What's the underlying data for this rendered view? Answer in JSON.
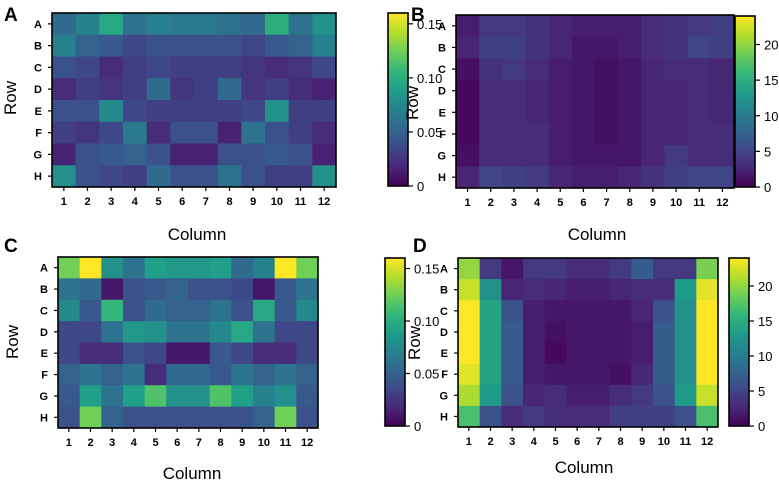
{
  "figure": {
    "panel_letters": [
      "A",
      "B",
      "C",
      "D"
    ]
  },
  "colors": {
    "viridis": [
      "#440154",
      "#482878",
      "#3e4989",
      "#31688e",
      "#26828e",
      "#1f9e89",
      "#35b779",
      "#6ece58",
      "#b5de2b",
      "#fde725"
    ]
  },
  "chart_data": [
    {
      "type": "heatmap",
      "panel": "A",
      "xlabel": "Column",
      "ylabel": "Row",
      "columns": [
        "1",
        "2",
        "3",
        "4",
        "5",
        "6",
        "7",
        "8",
        "9",
        "10",
        "11",
        "12"
      ],
      "rows": [
        "A",
        "B",
        "C",
        "D",
        "E",
        "F",
        "G",
        "H"
      ],
      "colorbar": {
        "min": 0,
        "max": 0.16,
        "ticks": [
          0,
          0.05,
          0.1,
          0.15
        ],
        "tick_labels": [
          "0",
          "0.05",
          "0.10",
          "0.15"
        ]
      },
      "values": [
        [
          0.055,
          0.07,
          0.095,
          0.06,
          0.07,
          0.065,
          0.065,
          0.06,
          0.055,
          0.1,
          0.06,
          0.08
        ],
        [
          0.07,
          0.05,
          0.045,
          0.035,
          0.04,
          0.04,
          0.04,
          0.04,
          0.035,
          0.045,
          0.05,
          0.07
        ],
        [
          0.04,
          0.035,
          0.02,
          0.03,
          0.035,
          0.03,
          0.03,
          0.03,
          0.025,
          0.02,
          0.025,
          0.035
        ],
        [
          0.02,
          0.03,
          0.025,
          0.03,
          0.055,
          0.025,
          0.03,
          0.055,
          0.025,
          0.03,
          0.02,
          0.015
        ],
        [
          0.04,
          0.04,
          0.075,
          0.035,
          0.03,
          0.03,
          0.03,
          0.03,
          0.035,
          0.08,
          0.03,
          0.03
        ],
        [
          0.03,
          0.025,
          0.035,
          0.065,
          0.02,
          0.04,
          0.04,
          0.015,
          0.06,
          0.04,
          0.03,
          0.02
        ],
        [
          0.015,
          0.04,
          0.045,
          0.05,
          0.04,
          0.015,
          0.015,
          0.04,
          0.04,
          0.045,
          0.04,
          0.015
        ],
        [
          0.08,
          0.04,
          0.035,
          0.03,
          0.055,
          0.04,
          0.04,
          0.06,
          0.04,
          0.03,
          0.03,
          0.08
        ]
      ]
    },
    {
      "type": "heatmap",
      "panel": "B",
      "xlabel": "Column",
      "ylabel": "Row",
      "columns": [
        "1",
        "2",
        "3",
        "4",
        "5",
        "6",
        "7",
        "8",
        "9",
        "10",
        "11",
        "12"
      ],
      "rows": [
        "A",
        "B",
        "C",
        "D",
        "E",
        "F",
        "G",
        "H"
      ],
      "colorbar": {
        "min": 0,
        "max": 24,
        "ticks": [
          0,
          5,
          10,
          15,
          20
        ],
        "tick_labels": [
          "0",
          "5",
          "10",
          "15",
          "20"
        ]
      },
      "values": [
        [
          2.0,
          4.0,
          4.0,
          3.5,
          2.5,
          2.0,
          2.0,
          2.0,
          3.0,
          3.5,
          4.0,
          4.5
        ],
        [
          2.5,
          4.5,
          4.5,
          3.5,
          2.5,
          1.5,
          1.5,
          2.0,
          3.0,
          3.5,
          5.0,
          4.5
        ],
        [
          1.0,
          3.5,
          4.0,
          3.0,
          2.0,
          1.5,
          1.0,
          1.5,
          2.5,
          3.0,
          3.0,
          2.5
        ],
        [
          0.5,
          3.0,
          3.0,
          2.5,
          2.0,
          1.5,
          1.0,
          1.5,
          2.5,
          2.5,
          3.0,
          2.5
        ],
        [
          0.5,
          3.0,
          3.0,
          2.5,
          2.0,
          1.5,
          1.0,
          1.5,
          2.5,
          2.5,
          3.0,
          2.5
        ],
        [
          0.5,
          3.0,
          3.0,
          3.0,
          2.0,
          1.5,
          1.0,
          1.5,
          2.5,
          2.5,
          3.0,
          3.0
        ],
        [
          1.0,
          3.0,
          3.0,
          3.0,
          2.0,
          1.5,
          1.5,
          1.5,
          2.5,
          4.0,
          3.0,
          3.0
        ],
        [
          2.5,
          5.0,
          4.5,
          4.0,
          2.5,
          2.0,
          2.0,
          2.5,
          3.5,
          4.5,
          5.0,
          5.0
        ]
      ]
    },
    {
      "type": "heatmap",
      "panel": "C",
      "xlabel": "Column",
      "ylabel": "Row",
      "columns": [
        "1",
        "2",
        "3",
        "4",
        "5",
        "6",
        "7",
        "8",
        "9",
        "10",
        "11",
        "12"
      ],
      "rows": [
        "A",
        "B",
        "C",
        "D",
        "E",
        "F",
        "G",
        "H"
      ],
      "colorbar": {
        "min": 0,
        "max": 0.16,
        "ticks": [
          0,
          0.05,
          0.1,
          0.15
        ],
        "tick_labels": [
          "0",
          "0.05",
          "0.10",
          "0.15"
        ]
      },
      "values": [
        [
          0.125,
          0.16,
          0.08,
          0.06,
          0.09,
          0.085,
          0.085,
          0.09,
          0.055,
          0.07,
          0.16,
          0.125
        ],
        [
          0.06,
          0.055,
          0.01,
          0.04,
          0.045,
          0.05,
          0.04,
          0.04,
          0.035,
          0.01,
          0.045,
          0.06
        ],
        [
          0.075,
          0.045,
          0.105,
          0.04,
          0.055,
          0.05,
          0.05,
          0.06,
          0.04,
          0.095,
          0.045,
          0.075
        ],
        [
          0.035,
          0.035,
          0.06,
          0.085,
          0.08,
          0.06,
          0.06,
          0.075,
          0.095,
          0.06,
          0.035,
          0.035
        ],
        [
          0.035,
          0.02,
          0.02,
          0.04,
          0.035,
          0.01,
          0.01,
          0.045,
          0.035,
          0.02,
          0.02,
          0.035
        ],
        [
          0.05,
          0.06,
          0.05,
          0.06,
          0.02,
          0.055,
          0.055,
          0.045,
          0.06,
          0.05,
          0.06,
          0.05
        ],
        [
          0.045,
          0.09,
          0.06,
          0.09,
          0.115,
          0.08,
          0.08,
          0.115,
          0.09,
          0.07,
          0.08,
          0.045
        ],
        [
          0.04,
          0.125,
          0.05,
          0.04,
          0.04,
          0.04,
          0.04,
          0.04,
          0.04,
          0.05,
          0.125,
          0.04
        ]
      ]
    },
    {
      "type": "heatmap",
      "panel": "D",
      "xlabel": "Column",
      "ylabel": "Row",
      "columns": [
        "1",
        "2",
        "3",
        "4",
        "5",
        "6",
        "7",
        "8",
        "9",
        "10",
        "11",
        "12"
      ],
      "rows": [
        "A",
        "B",
        "C",
        "D",
        "E",
        "F",
        "G",
        "H"
      ],
      "colorbar": {
        "min": 0,
        "max": 24,
        "ticks": [
          0,
          5,
          10,
          15,
          20
        ],
        "tick_labels": [
          "0",
          "5",
          "10",
          "15",
          "20"
        ]
      },
      "values": [
        [
          20.0,
          4.0,
          1.5,
          4.0,
          4.0,
          3.0,
          3.0,
          4.0,
          7.0,
          4.0,
          4.0,
          19.0
        ],
        [
          22.0,
          12.0,
          2.5,
          3.0,
          2.5,
          2.0,
          2.0,
          2.5,
          3.0,
          3.0,
          13.0,
          23.0
        ],
        [
          24.0,
          14.0,
          6.0,
          2.0,
          1.5,
          1.5,
          1.5,
          1.5,
          2.5,
          6.0,
          12.0,
          24.0
        ],
        [
          24.0,
          14.0,
          7.0,
          2.0,
          1.0,
          1.5,
          1.5,
          1.5,
          2.0,
          7.0,
          12.0,
          24.0
        ],
        [
          24.0,
          14.0,
          7.0,
          2.0,
          0.5,
          1.5,
          1.5,
          1.5,
          2.0,
          7.0,
          12.0,
          24.0
        ],
        [
          23.0,
          14.0,
          7.0,
          2.0,
          1.5,
          1.5,
          1.5,
          1.0,
          2.5,
          7.0,
          12.0,
          24.0
        ],
        [
          21.0,
          13.0,
          6.0,
          2.5,
          3.0,
          2.0,
          2.0,
          3.0,
          4.0,
          6.0,
          13.0,
          22.0
        ],
        [
          17.0,
          6.0,
          3.0,
          4.0,
          3.0,
          3.0,
          3.0,
          4.5,
          4.5,
          4.5,
          6.0,
          17.0
        ]
      ]
    }
  ]
}
